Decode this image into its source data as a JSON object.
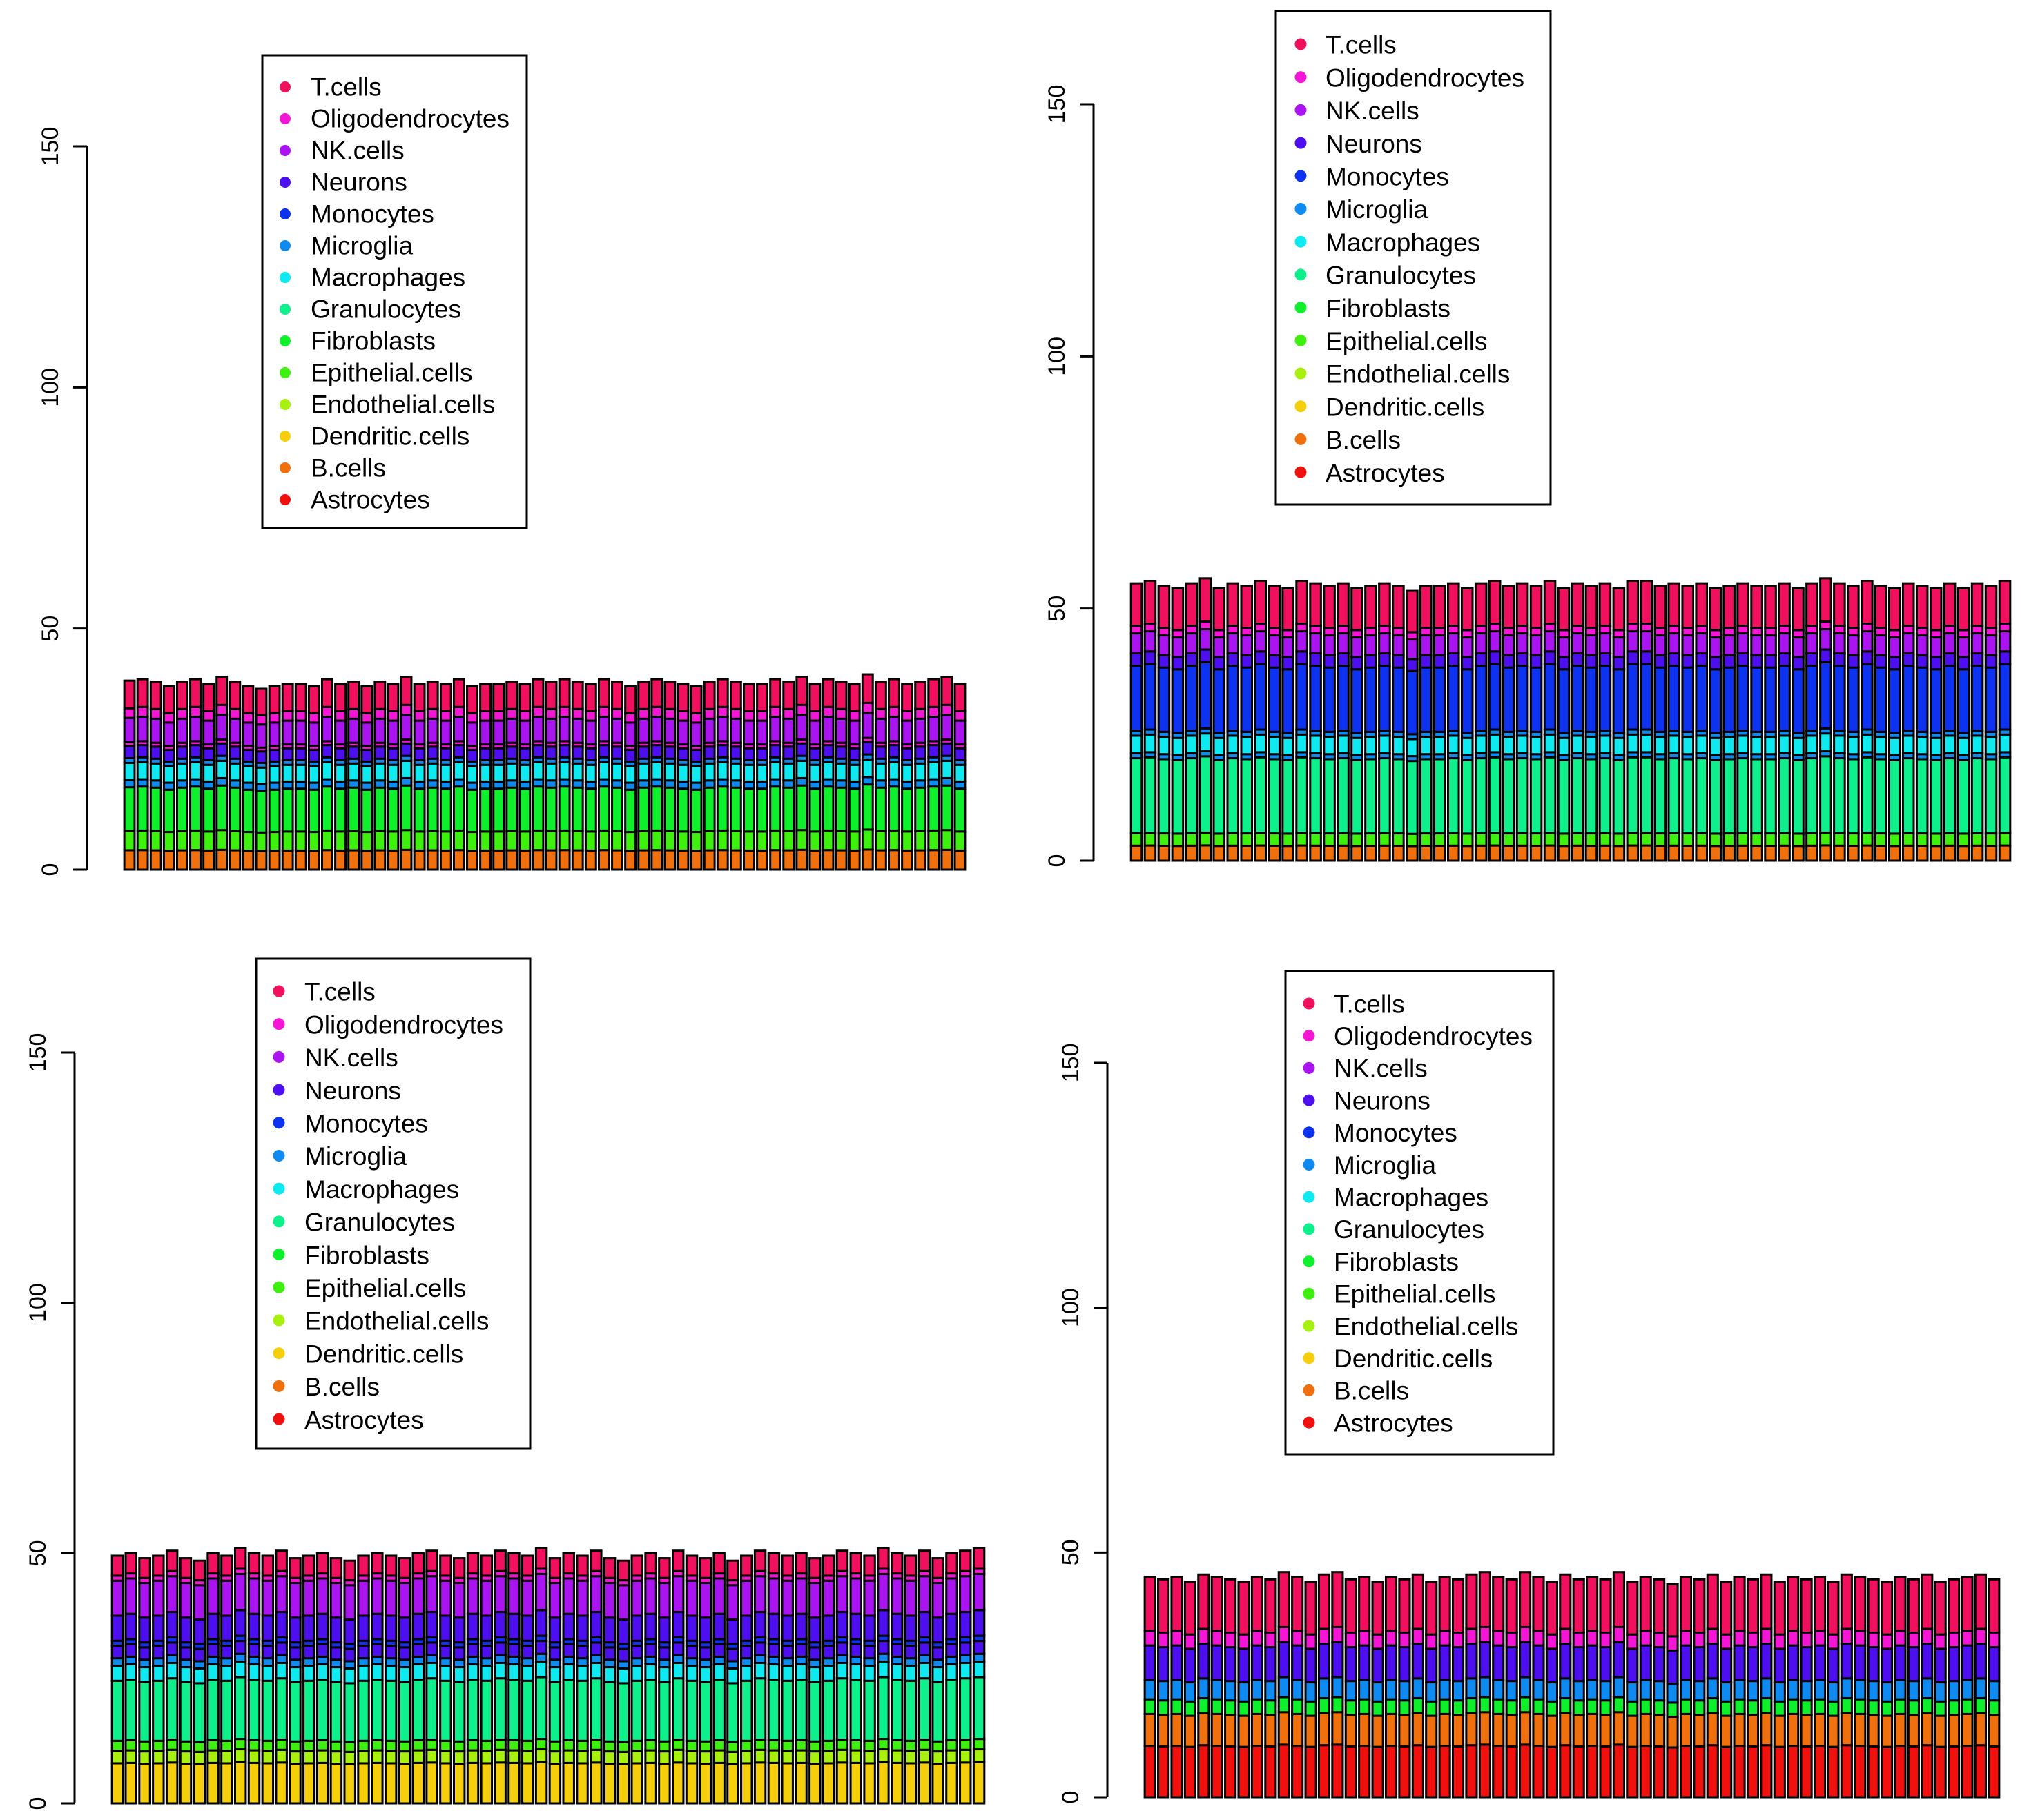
{
  "colors": {
    "T.cells": "#F0105E",
    "Oligodendrocytes": "#F516D5",
    "NK.cells": "#A914F0",
    "Neurons": "#4D0FF0",
    "Monocytes": "#0D32F0",
    "Microglia": "#0E8AF0",
    "Macrophages": "#0FEAF0",
    "Granulocytes": "#0EF08C",
    "Fibroblasts": "#0EF02B",
    "Epithelial.cells": "#3DF00E",
    "Endothelial.cells": "#A8F00E",
    "Dendritic.cells": "#F5CF0C",
    "B.cells": "#F0700E",
    "Astrocytes": "#F0100E"
  },
  "chart_data": [
    {
      "type": "bar",
      "stacked": true,
      "n_bars": 64,
      "ylim": [
        0,
        150
      ],
      "yticks": [
        "0",
        "50",
        "100",
        "150"
      ],
      "legend": [
        "T.cells",
        "Oligodendrocytes",
        "NK.cells",
        "Neurons",
        "Monocytes",
        "Microglia",
        "Macrophages",
        "Granulocytes",
        "Fibroblasts",
        "Epithelial.cells",
        "Endothelial.cells",
        "Dendritic.cells",
        "B.cells",
        "Astrocytes"
      ],
      "legend_position": "top",
      "segments": [
        {
          "name": "B.cells",
          "value": 4.0
        },
        {
          "name": "Epithelial.cells",
          "value": 4.0
        },
        {
          "name": "Fibroblasts",
          "value": 9.0
        },
        {
          "name": "Microglia",
          "value": 1.5
        },
        {
          "name": "Macrophages",
          "value": 3.5
        },
        {
          "name": "Microglia",
          "value": 1.0
        },
        {
          "name": "Neurons",
          "value": 2.5
        },
        {
          "name": "Oligodendrocytes",
          "value": 0.8
        },
        {
          "name": "NK.cells",
          "value": 5.0
        },
        {
          "name": "Oligodendrocytes",
          "value": 2.0
        },
        {
          "name": "T.cells",
          "value": 5.7
        }
      ],
      "bar_totals": [
        39.2,
        39.5,
        39.0,
        38.0,
        39.0,
        39.5,
        38.5,
        40.0,
        39.0,
        38.0,
        37.5,
        38.0,
        38.5,
        38.5,
        38.0,
        39.5,
        38.5,
        39.0,
        38.0,
        39.0,
        38.5,
        40.0,
        38.5,
        39.0,
        38.5,
        39.5,
        38.0,
        38.5,
        38.5,
        39.0,
        38.5,
        39.5,
        39.0,
        39.5,
        39.0,
        38.5,
        39.5,
        39.0,
        38.0,
        39.0,
        39.5,
        39.0,
        38.5,
        38.0,
        39.0,
        39.5,
        39.0,
        38.5,
        38.5,
        39.5,
        39.0,
        40.0,
        38.5,
        39.5,
        39.0,
        38.5,
        40.5,
        39.0,
        39.5,
        38.5,
        39.0,
        39.5,
        40.0,
        38.5
      ]
    },
    {
      "type": "bar",
      "stacked": true,
      "n_bars": 64,
      "ylim": [
        0,
        150
      ],
      "yticks": [
        "0",
        "50",
        "100",
        "150"
      ],
      "legend": [
        "T.cells",
        "Oligodendrocytes",
        "NK.cells",
        "Neurons",
        "Monocytes",
        "Microglia",
        "Macrophages",
        "Granulocytes",
        "Fibroblasts",
        "Epithelial.cells",
        "Endothelial.cells",
        "Dendritic.cells",
        "B.cells",
        "Astrocytes"
      ],
      "legend_position": "top",
      "segments": [
        {
          "name": "B.cells",
          "value": 3.0
        },
        {
          "name": "Epithelial.cells",
          "value": 2.5
        },
        {
          "name": "Granulocytes",
          "value": 15.0
        },
        {
          "name": "Microglia",
          "value": 1.0
        },
        {
          "name": "Macrophages",
          "value": 3.5
        },
        {
          "name": "Microglia",
          "value": 1.0
        },
        {
          "name": "Monocytes",
          "value": 13.0
        },
        {
          "name": "Neurons",
          "value": 2.5
        },
        {
          "name": "NK.cells",
          "value": 4.0
        },
        {
          "name": "Oligodendrocytes",
          "value": 1.5
        },
        {
          "name": "T.cells",
          "value": 8.5
        }
      ],
      "bar_totals": [
        55.0,
        55.5,
        54.5,
        54.0,
        55.0,
        56.0,
        54.0,
        55.0,
        54.5,
        55.5,
        54.5,
        54.0,
        55.5,
        55.0,
        54.5,
        55.0,
        54.0,
        54.5,
        55.0,
        54.5,
        53.5,
        54.5,
        54.5,
        55.0,
        54.0,
        55.0,
        55.5,
        54.5,
        55.0,
        54.5,
        55.5,
        54.0,
        55.0,
        54.5,
        55.0,
        54.0,
        55.5,
        55.5,
        54.5,
        55.0,
        54.5,
        55.0,
        54.0,
        54.5,
        55.0,
        54.5,
        54.5,
        55.0,
        54.0,
        55.0,
        56.0,
        55.0,
        54.5,
        55.5,
        54.5,
        54.0,
        55.0,
        54.5,
        54.0,
        55.0,
        54.0,
        55.0,
        54.5,
        55.5
      ]
    },
    {
      "type": "bar",
      "stacked": true,
      "n_bars": 64,
      "ylim": [
        0,
        150
      ],
      "yticks": [
        "0",
        "50",
        "100",
        "150"
      ],
      "legend": [
        "T.cells",
        "Oligodendrocytes",
        "NK.cells",
        "Neurons",
        "Monocytes",
        "Microglia",
        "Macrophages",
        "Granulocytes",
        "Fibroblasts",
        "Epithelial.cells",
        "Endothelial.cells",
        "Dendritic.cells",
        "B.cells",
        "Astrocytes"
      ],
      "legend_position": "top",
      "segments": [
        {
          "name": "Dendritic.cells",
          "value": 8.0
        },
        {
          "name": "Endothelial.cells",
          "value": 2.5
        },
        {
          "name": "Epithelial.cells",
          "value": 2.0
        },
        {
          "name": "Granulocytes",
          "value": 12.0
        },
        {
          "name": "Macrophages",
          "value": 3.0
        },
        {
          "name": "Microglia",
          "value": 1.5
        },
        {
          "name": "Neurons",
          "value": 2.5
        },
        {
          "name": "Monocytes",
          "value": 1.0
        },
        {
          "name": "Neurons",
          "value": 5.0
        },
        {
          "name": "NK.cells",
          "value": 7.0
        },
        {
          "name": "Oligodendrocytes",
          "value": 1.0
        },
        {
          "name": "T.cells",
          "value": 4.0
        }
      ],
      "bar_totals": [
        49.5,
        50.0,
        49.0,
        49.5,
        50.5,
        49.0,
        48.5,
        50.0,
        49.5,
        51.0,
        50.0,
        49.5,
        50.5,
        49.0,
        49.5,
        50.0,
        49.0,
        48.5,
        49.5,
        50.0,
        49.5,
        49.0,
        50.0,
        50.5,
        49.5,
        49.0,
        50.0,
        49.5,
        50.5,
        50.0,
        49.5,
        51.0,
        49.0,
        50.0,
        49.5,
        50.5,
        49.0,
        48.5,
        49.5,
        50.0,
        49.0,
        50.5,
        49.5,
        49.0,
        50.0,
        48.5,
        49.5,
        50.5,
        50.0,
        49.5,
        50.0,
        49.0,
        49.5,
        50.5,
        50.0,
        49.5,
        51.0,
        50.0,
        49.5,
        50.5,
        49.0,
        50.0,
        50.5,
        51.0
      ]
    },
    {
      "type": "bar",
      "stacked": true,
      "n_bars": 64,
      "ylim": [
        0,
        150
      ],
      "yticks": [
        "0",
        "50",
        "100",
        "150"
      ],
      "legend": [
        "T.cells",
        "Oligodendrocytes",
        "NK.cells",
        "Neurons",
        "Monocytes",
        "Microglia",
        "Macrophages",
        "Granulocytes",
        "Fibroblasts",
        "Epithelial.cells",
        "Endothelial.cells",
        "Dendritic.cells",
        "B.cells",
        "Astrocytes"
      ],
      "legend_position": "top",
      "segments": [
        {
          "name": "Astrocytes",
          "value": 10.5
        },
        {
          "name": "B.cells",
          "value": 6.5
        },
        {
          "name": "Fibroblasts",
          "value": 3.0
        },
        {
          "name": "Microglia",
          "value": 4.0
        },
        {
          "name": "Neurons",
          "value": 7.0
        },
        {
          "name": "Oligodendrocytes",
          "value": 3.0
        },
        {
          "name": "T.cells",
          "value": 11.0
        }
      ],
      "bar_totals": [
        45.0,
        44.5,
        45.0,
        44.0,
        45.5,
        45.0,
        44.5,
        44.0,
        45.0,
        44.5,
        46.0,
        45.0,
        44.0,
        45.5,
        46.0,
        44.5,
        45.0,
        44.0,
        45.0,
        44.5,
        45.5,
        44.0,
        45.0,
        44.5,
        45.5,
        46.0,
        45.0,
        44.5,
        46.0,
        45.0,
        44.0,
        45.5,
        44.5,
        45.0,
        44.5,
        46.0,
        44.0,
        45.0,
        44.5,
        43.5,
        45.0,
        44.5,
        45.5,
        44.0,
        45.0,
        44.5,
        45.5,
        44.0,
        45.0,
        44.5,
        45.0,
        44.0,
        45.5,
        45.0,
        44.5,
        44.0,
        45.0,
        44.5,
        45.5,
        44.0,
        44.5,
        45.0,
        45.5,
        44.5
      ]
    }
  ]
}
